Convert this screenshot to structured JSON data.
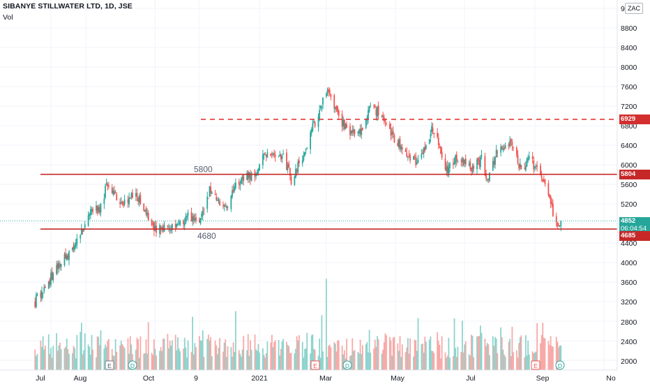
{
  "header": {
    "title": "SIBANYE STILLWATER LTD, 1D, JSE",
    "volume_label": "Vol"
  },
  "currency_button": "ZAC",
  "price_axis": {
    "ticks": [
      "9",
      "8800",
      "8400",
      "8000",
      "7600",
      "7200",
      "6800",
      "6400",
      "6000",
      "5600",
      "5200",
      "4400",
      "4000",
      "3600",
      "3200",
      "2800",
      "2400",
      "2000"
    ]
  },
  "time_axis": {
    "ticks": [
      "Jul",
      "Aug",
      "Oct",
      "9",
      "2021",
      "Mar",
      "May",
      "Jul",
      "Sep",
      "No"
    ]
  },
  "levels": {
    "resistance_dashed": {
      "label": "6929",
      "color": "#e53935"
    },
    "resistance": {
      "label": "5804",
      "annotation": "5800",
      "color": "#c62828"
    },
    "support": {
      "label": "4685",
      "annotation": "4680",
      "color": "#c62828"
    }
  },
  "last_price": {
    "value": "4852",
    "countdown": "06:04:54",
    "color": "#26a69a"
  },
  "event_markers": [
    "E",
    "D",
    "E",
    "D",
    "E",
    "D"
  ],
  "colors": {
    "up": "#26a69a",
    "down": "#ef5350",
    "up_volume": "#8ed3cc",
    "down_volume": "#f7a9a7",
    "grid": "#f0f3fa"
  },
  "chart_data": {
    "type": "candlestick",
    "title": "SIBANYE STILLWATER LTD, 1D, JSE",
    "timeframe": "1D",
    "price_range": [
      1900,
      9200
    ],
    "x_range": [
      "2020-06",
      "2021-10"
    ],
    "grid": true,
    "anchors": [
      [
        "2020-06-17",
        3200
      ],
      [
        "2020-06-30",
        3650
      ],
      [
        "2020-07-20",
        4300
      ],
      [
        "2020-07-31",
        4800
      ],
      [
        "2020-08-06",
        5150
      ],
      [
        "2020-08-12",
        5050
      ],
      [
        "2020-08-20",
        5600
      ],
      [
        "2020-09-02",
        5200
      ],
      [
        "2020-09-14",
        5450
      ],
      [
        "2020-09-28",
        4700
      ],
      [
        "2020-10-14",
        4650
      ],
      [
        "2020-10-30",
        4950
      ],
      [
        "2020-11-09",
        4800
      ],
      [
        "2020-11-18",
        5500
      ],
      [
        "2020-12-01",
        5100
      ],
      [
        "2020-12-15",
        5700
      ],
      [
        "2020-12-28",
        5850
      ],
      [
        "2021-01-08",
        6300
      ],
      [
        "2021-01-22",
        6200
      ],
      [
        "2021-01-29",
        5700
      ],
      [
        "2021-02-10",
        6300
      ],
      [
        "2021-02-19",
        6900
      ],
      [
        "2021-03-01",
        7500
      ],
      [
        "2021-03-10",
        7100
      ],
      [
        "2021-03-19",
        6700
      ],
      [
        "2021-03-31",
        6600
      ],
      [
        "2021-04-09",
        7300
      ],
      [
        "2021-04-23",
        6800
      ],
      [
        "2021-05-07",
        6300
      ],
      [
        "2021-05-21",
        6050
      ],
      [
        "2021-06-03",
        6750
      ],
      [
        "2021-06-15",
        5900
      ],
      [
        "2021-06-25",
        6150
      ],
      [
        "2021-07-07",
        5950
      ],
      [
        "2021-07-16",
        6100
      ],
      [
        "2021-07-21",
        5650
      ],
      [
        "2021-07-30",
        6350
      ],
      [
        "2021-08-11",
        6450
      ],
      [
        "2021-08-20",
        5900
      ],
      [
        "2021-08-27",
        6150
      ],
      [
        "2021-09-06",
        5800
      ],
      [
        "2021-09-14",
        5250
      ],
      [
        "2021-09-20",
        4790
      ],
      [
        "2021-09-24",
        4852
      ]
    ],
    "volume_spikes": [
      [
        "2021-03-01",
        3680
      ],
      [
        "2020-12-11",
        3020
      ],
      [
        "2021-06-22",
        2870
      ]
    ],
    "horizontal_levels": [
      6929,
      5804,
      4685
    ],
    "last_price": 4852
  }
}
